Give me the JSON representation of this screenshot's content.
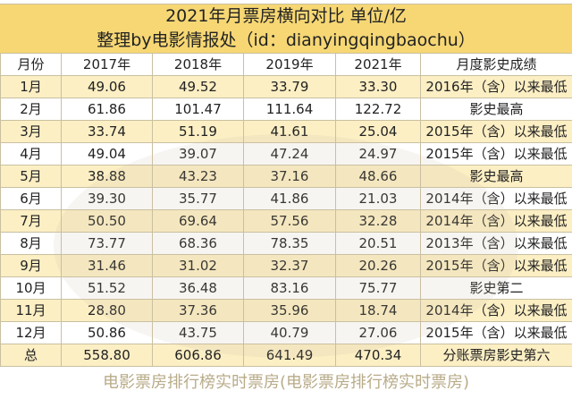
{
  "title": "2021年月票房横向对比 单位/亿",
  "subtitle": "整理by电影情报处（id：dianyingqingbaochu）",
  "headers": [
    "月份",
    "2017年",
    "2018年",
    "2019年",
    "2021年",
    "月度影史成绩"
  ],
  "rows": [
    [
      "1月",
      "49.06",
      "49.52",
      "33.79",
      "33.30",
      "2016年（含）以来最低"
    ],
    [
      "2月",
      "61.86",
      "101.47",
      "111.64",
      "122.72",
      "影史最高"
    ],
    [
      "3月",
      "33.74",
      "51.19",
      "41.61",
      "25.04",
      "2015年（含）以来最低"
    ],
    [
      "4月",
      "49.04",
      "39.07",
      "47.24",
      "24.97",
      "2015年（含）以来最低"
    ],
    [
      "5月",
      "38.88",
      "43.23",
      "37.16",
      "48.66",
      "影史最高"
    ],
    [
      "6月",
      "39.30",
      "35.77",
      "41.86",
      "21.03",
      "2014年（含）以来最低"
    ],
    [
      "7月",
      "50.50",
      "69.64",
      "57.56",
      "32.28",
      "2014年（含）以来最低"
    ],
    [
      "8月",
      "73.77",
      "68.36",
      "78.35",
      "20.51",
      "2013年（含）以来最低"
    ],
    [
      "9月",
      "31.46",
      "31.02",
      "32.37",
      "20.26",
      "2015年（含）以来最低"
    ],
    [
      "10月",
      "51.52",
      "36.48",
      "83.16",
      "75.77",
      "影史第二"
    ],
    [
      "11月",
      "28.80",
      "37.36",
      "35.96",
      "18.74",
      "2014年（含）以来最低"
    ],
    [
      "12月",
      "50.86",
      "43.75",
      "40.79",
      "27.06",
      "2015年（含）以来最低"
    ],
    [
      "总",
      "558.80",
      "606.86",
      "641.49",
      "470.34",
      "分账票房影史第六"
    ]
  ],
  "watermark": "电影票房排行榜实时票房(电影票房排行榜实时票房)"
}
